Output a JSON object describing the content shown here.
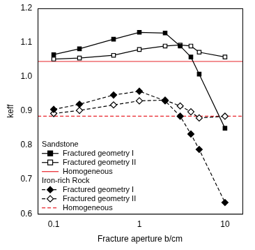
{
  "chart_data": {
    "type": "line",
    "x_label": "Fracture aperture b/cm",
    "y_label": "keff",
    "log": "x",
    "grid": false,
    "legend": "lower left",
    "xlim": [
      0.065,
      16
    ],
    "xticks": [
      0.1,
      1,
      10
    ],
    "ylim": [
      0.6,
      1.2
    ],
    "yticks": [
      0.6,
      0.7,
      0.8,
      0.9,
      {
        "value": 1,
        "label": "1.0"
      },
      1.1,
      1.2
    ],
    "series": [
      {
        "name": "Fractured geometry I",
        "group": "Sandstone",
        "color": "#000000",
        "marker": "filled_square",
        "line_style": "solid",
        "x": [
          0.1,
          0.2,
          0.5,
          1,
          2,
          3,
          4,
          5,
          10
        ],
        "values": [
          1.065,
          1.082,
          1.11,
          1.13,
          1.128,
          1.09,
          1.058,
          1.008,
          0.85
        ]
      },
      {
        "name": "Fractured geometry II",
        "group": "Sandstone",
        "color": "#000000",
        "marker": "open_square",
        "line_style": "solid",
        "x": [
          0.1,
          0.2,
          0.5,
          1,
          2,
          3,
          4,
          5,
          10
        ],
        "values": [
          1.052,
          1.055,
          1.063,
          1.08,
          1.09,
          1.093,
          1.09,
          1.072,
          1.058
        ]
      },
      {
        "name": "Homogeneous",
        "group": "Sandstone",
        "type": "hline",
        "color": "#e8242b",
        "line_style": "solid",
        "values": [
          1.045
        ]
      },
      {
        "name": "Fractured geometry I",
        "group": "Iron-rich Rock",
        "color": "#000000",
        "marker": "filled_diamond",
        "line_style": "dashed",
        "x": [
          0.1,
          0.2,
          0.5,
          1,
          2,
          3,
          4,
          5,
          10
        ],
        "values": [
          0.905,
          0.92,
          0.947,
          0.958,
          0.93,
          0.885,
          0.833,
          0.788,
          0.633
        ]
      },
      {
        "name": "Fractured geometry II",
        "group": "Iron-rich Rock",
        "color": "#000000",
        "marker": "open_diamond",
        "line_style": "dashed",
        "x": [
          0.1,
          0.2,
          0.5,
          1,
          2,
          3,
          4,
          5,
          10
        ],
        "values": [
          0.893,
          0.902,
          0.918,
          0.93,
          0.932,
          0.915,
          0.898,
          0.88,
          0.885
        ]
      },
      {
        "name": "Homogeneous",
        "group": "Iron-rich Rock",
        "type": "hline",
        "color": "#e8242b",
        "line_style": "dashed",
        "values": [
          0.885
        ]
      }
    ]
  }
}
